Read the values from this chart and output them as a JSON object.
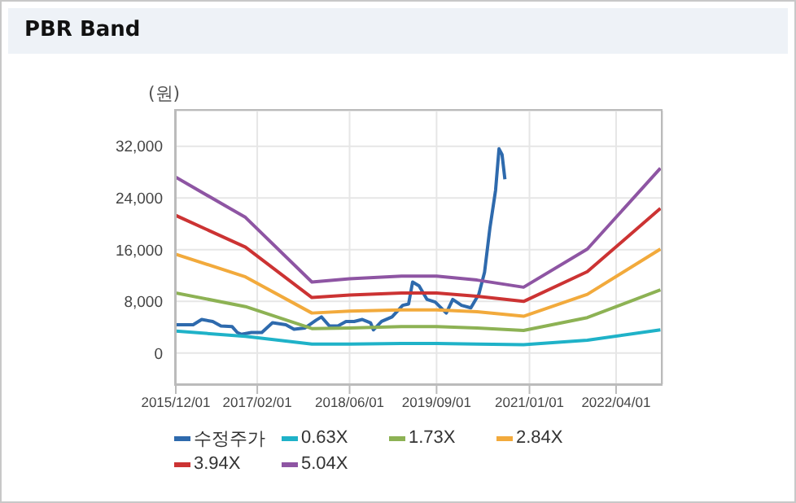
{
  "chart_data": {
    "type": "line",
    "title": "PBR Band",
    "ylabel": "(원)",
    "xlim": [
      "2015-12-01",
      "2022-12-01"
    ],
    "xticks": [
      {
        "value": "2015-12-01",
        "label": "2015/12/01"
      },
      {
        "value": "2017-02-01",
        "label": "2017/02/01"
      },
      {
        "value": "2018-06-01",
        "label": "2018/06/01"
      },
      {
        "value": "2019-09-01",
        "label": "2019/09/01"
      },
      {
        "value": "2021-01-01",
        "label": "2021/01/01"
      },
      {
        "value": "2022-04-01",
        "label": "2022/04/01"
      }
    ],
    "ylim": [
      -4800,
      37500
    ],
    "yticks": [
      {
        "value": 0,
        "label": "0"
      },
      {
        "value": 8000,
        "label": "8,000"
      },
      {
        "value": 16000,
        "label": "16,000"
      },
      {
        "value": 24000,
        "label": "24,000"
      },
      {
        "value": 32000,
        "label": "32,000"
      }
    ],
    "grid": true,
    "legend": "bottom",
    "marker": "none",
    "line_style": "solid",
    "series": [
      {
        "name": "수정주가",
        "color": "#2e6aad",
        "x": [
          "2015-12-01",
          "2016-03-01",
          "2016-04-15",
          "2016-06-12",
          "2016-07-25",
          "2016-09-22",
          "2016-10-19",
          "2016-11-10",
          "2017-01-01",
          "2017-02-25",
          "2017-04-22",
          "2017-07-01",
          "2017-08-13",
          "2017-10-10",
          "2017-12-07",
          "2018-01-04",
          "2018-02-15",
          "2018-04-01",
          "2018-05-13",
          "2018-06-25",
          "2018-08-07",
          "2018-09-19",
          "2018-10-04",
          "2018-11-16",
          "2019-01-10",
          "2019-03-07",
          "2019-04-07",
          "2019-04-28",
          "2019-06-01",
          "2019-07-13",
          "2019-08-25",
          "2019-10-22",
          "2019-11-25",
          "2020-01-10",
          "2020-02-28",
          "2020-04-10",
          "2020-05-10",
          "2020-06-07",
          "2020-07-07",
          "2020-07-25",
          "2020-08-10",
          "2020-08-25"
        ],
        "values": [
          4400,
          4400,
          5200,
          4900,
          4200,
          4100,
          3200,
          2900,
          3200,
          3200,
          4700,
          4400,
          3700,
          3900,
          5100,
          5600,
          4200,
          4200,
          4900,
          4900,
          5200,
          4700,
          3600,
          4900,
          5600,
          7400,
          7600,
          11000,
          10400,
          8300,
          7900,
          6200,
          8300,
          7400,
          7000,
          9100,
          12500,
          19300,
          25200,
          31600,
          30700,
          26900
        ]
      },
      {
        "name": "0.63X",
        "color": "#1fb2c8",
        "x": [
          "2015-12-01",
          "2016-12-01",
          "2017-11-15",
          "2018-06-01",
          "2019-03-01",
          "2019-09-01",
          "2020-04-01",
          "2020-12-01",
          "2021-11-01",
          "2022-11-20"
        ],
        "values": [
          3400,
          2600,
          1400,
          1400,
          1500,
          1500,
          1400,
          1300,
          2000,
          3600
        ]
      },
      {
        "name": "1.73X",
        "color": "#8db254",
        "x": [
          "2015-12-01",
          "2016-12-01",
          "2017-11-15",
          "2018-06-01",
          "2019-03-01",
          "2019-09-01",
          "2020-04-01",
          "2020-12-01",
          "2021-11-01",
          "2022-11-20"
        ],
        "values": [
          9300,
          7200,
          3800,
          3900,
          4100,
          4100,
          3900,
          3500,
          5500,
          9800
        ]
      },
      {
        "name": "2.84X",
        "color": "#f2aa3c",
        "x": [
          "2015-12-01",
          "2016-12-01",
          "2017-11-15",
          "2018-06-01",
          "2019-03-01",
          "2019-09-01",
          "2020-04-01",
          "2020-12-01",
          "2021-11-01",
          "2022-11-20"
        ],
        "values": [
          15300,
          11800,
          6200,
          6500,
          6700,
          6700,
          6400,
          5700,
          9100,
          16100
        ]
      },
      {
        "name": "3.94X",
        "color": "#cc3333",
        "x": [
          "2015-12-01",
          "2016-12-01",
          "2017-11-15",
          "2018-06-01",
          "2019-03-01",
          "2019-09-01",
          "2020-04-01",
          "2020-12-01",
          "2021-11-01",
          "2022-11-20"
        ],
        "values": [
          21300,
          16400,
          8600,
          9000,
          9300,
          9300,
          8800,
          8000,
          12600,
          22400
        ]
      },
      {
        "name": "5.04X",
        "color": "#8e55a3",
        "x": [
          "2015-12-01",
          "2016-12-01",
          "2017-11-15",
          "2018-06-01",
          "2019-03-01",
          "2019-09-01",
          "2020-04-01",
          "2020-12-01",
          "2021-11-01",
          "2022-11-20"
        ],
        "values": [
          27200,
          21000,
          11000,
          11500,
          11900,
          11900,
          11300,
          10200,
          16100,
          28600
        ]
      }
    ]
  }
}
